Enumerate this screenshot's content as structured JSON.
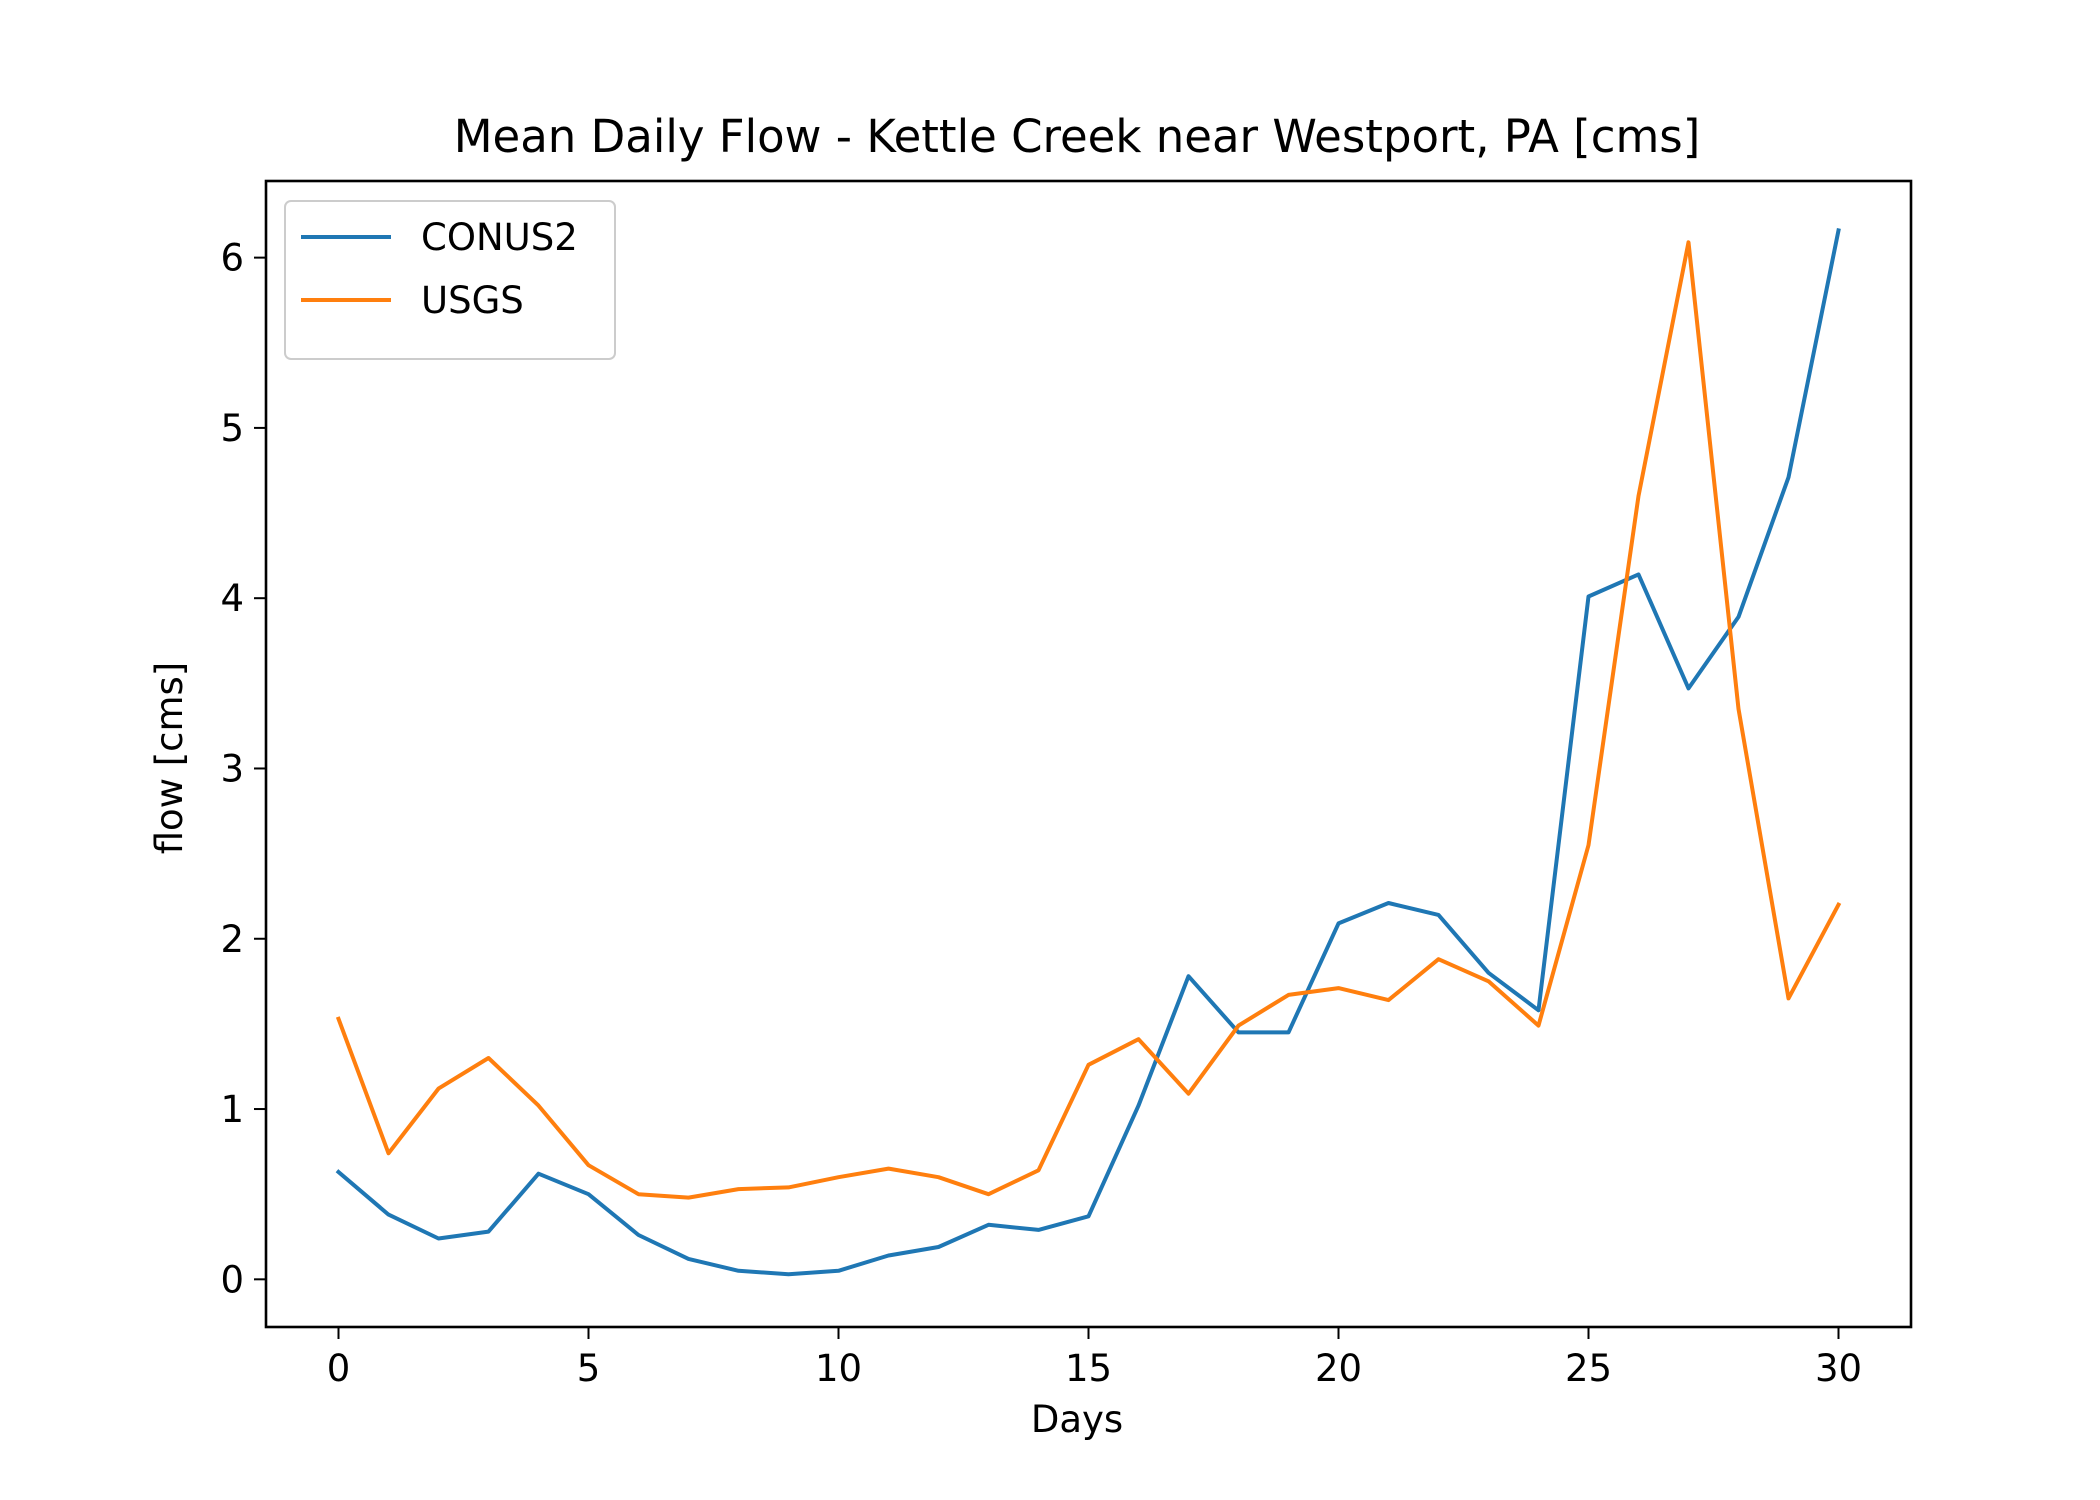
{
  "chart_data": {
    "type": "line",
    "title": "Mean Daily Flow - Kettle Creek near Westport, PA [cms]",
    "xlabel": "Days",
    "ylabel": "flow [cms]",
    "xlim": [
      -1.45,
      31.45
    ],
    "ylim": [
      -0.28,
      6.45
    ],
    "xticks": [
      0,
      5,
      10,
      15,
      20,
      25,
      30
    ],
    "yticks": [
      0,
      1,
      2,
      3,
      4,
      5,
      6
    ],
    "grid": false,
    "legend_position": "top-left",
    "x": [
      0,
      1,
      2,
      3,
      4,
      5,
      6,
      7,
      8,
      9,
      10,
      11,
      12,
      13,
      14,
      15,
      16,
      17,
      18,
      19,
      20,
      21,
      22,
      23,
      24,
      25,
      26,
      27,
      28,
      29,
      30
    ],
    "series": [
      {
        "name": "CONUS2",
        "color": "#1f77b4",
        "values": [
          0.63,
          0.38,
          0.24,
          0.28,
          0.62,
          0.5,
          0.26,
          0.12,
          0.05,
          0.03,
          0.05,
          0.14,
          0.19,
          0.32,
          0.29,
          0.37,
          1.02,
          1.78,
          1.45,
          1.45,
          2.09,
          2.21,
          2.14,
          1.8,
          1.58,
          4.01,
          4.14,
          3.47,
          3.89,
          4.71,
          6.16
        ]
      },
      {
        "name": "USGS",
        "color": "#ff7f0e",
        "values": [
          1.53,
          0.74,
          1.12,
          1.3,
          1.02,
          0.67,
          0.5,
          0.48,
          0.53,
          0.54,
          0.6,
          0.65,
          0.6,
          0.5,
          0.64,
          1.26,
          1.41,
          1.09,
          1.49,
          1.67,
          1.71,
          1.64,
          1.88,
          1.75,
          1.49,
          2.55,
          4.6,
          6.09,
          3.35,
          1.65,
          2.2
        ]
      }
    ]
  }
}
